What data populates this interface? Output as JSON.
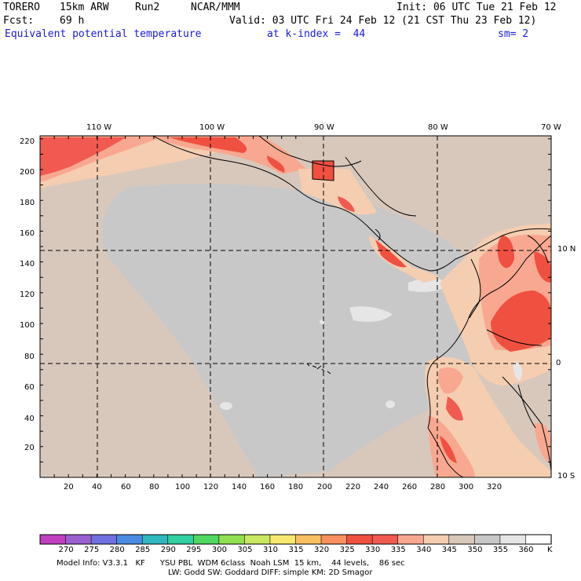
{
  "header": {
    "model": "TORERO",
    "resolution": "15km ARW",
    "run": "Run2",
    "org": "NCAR/MMM",
    "init": "Init: 06 UTC Tue 21 Feb 12",
    "fcst_label": "Fcst:",
    "fcst_value": "69 h",
    "valid": "Valid: 03 UTC Fri 24 Feb 12 (21 CST Thu 23 Feb 12)",
    "field": "Equivalent potential temperature",
    "level": "at k-index =  44",
    "smoothing": "sm= 2"
  },
  "map": {
    "lon_labels": [
      "110 W",
      "100 W",
      "90 W",
      "80 W",
      "70 W"
    ],
    "lat_labels": [
      "10 N",
      "0",
      "10 S"
    ],
    "x_ticks": [
      "20",
      "40",
      "60",
      "80",
      "100",
      "120",
      "140",
      "160",
      "180",
      "200",
      "220",
      "240",
      "260",
      "280",
      "300",
      "320"
    ],
    "y_ticks": [
      "20",
      "40",
      "60",
      "80",
      "100",
      "120",
      "140",
      "160",
      "180",
      "200",
      "220"
    ]
  },
  "colorbar": {
    "labels": [
      "270",
      "275",
      "280",
      "285",
      "290",
      "295",
      "300",
      "305",
      "310",
      "315",
      "320",
      "325",
      "330",
      "335",
      "340",
      "345",
      "350",
      "355",
      "360"
    ],
    "unit": "K",
    "colors": [
      "#c040c0",
      "#9a60d0",
      "#7070e0",
      "#4a8ce0",
      "#30b8c0",
      "#30d0a0",
      "#50d860",
      "#90e050",
      "#c8e860",
      "#f8e870",
      "#f8c060",
      "#f89060",
      "#f05040",
      "#f05a50",
      "#f8a890",
      "#f5cdb0",
      "#d8c8bc",
      "#c8c8c8",
      "#e6e6e6",
      "#ffffff"
    ]
  },
  "footer": {
    "line1": "Model Info: V3.3.1   KF      YSU PBL  WDM 6class  Noah LSM  15 km,    44 levels,    86 sec",
    "line2": "LW: Godd SW: Goddard DIFF: simple KM: 2D Smagor"
  }
}
